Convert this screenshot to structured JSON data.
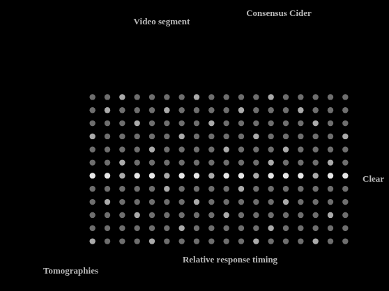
{
  "chart_data": {
    "type": "heatmap",
    "annotations": [
      "Video segment",
      "Consensus Cider",
      "Clear",
      "Relative response timing",
      "Tomographies"
    ],
    "tick_labels": false,
    "grid": false,
    "cells": [
      [
        1,
        1,
        2,
        1,
        1,
        1,
        1,
        2,
        1,
        1,
        1,
        1,
        2,
        1,
        1,
        1,
        1,
        1
      ],
      [
        1,
        2,
        1,
        1,
        1,
        2,
        1,
        1,
        1,
        1,
        2,
        1,
        1,
        1,
        2,
        1,
        1,
        1
      ],
      [
        1,
        1,
        1,
        2,
        1,
        1,
        1,
        1,
        2,
        1,
        1,
        1,
        1,
        1,
        1,
        2,
        1,
        1
      ],
      [
        2,
        1,
        1,
        1,
        1,
        1,
        2,
        1,
        1,
        1,
        1,
        2,
        1,
        1,
        1,
        1,
        1,
        2
      ],
      [
        1,
        1,
        1,
        1,
        2,
        1,
        1,
        1,
        1,
        2,
        1,
        1,
        1,
        2,
        1,
        1,
        1,
        1
      ],
      [
        1,
        1,
        2,
        1,
        1,
        1,
        1,
        1,
        1,
        1,
        1,
        1,
        2,
        1,
        1,
        1,
        2,
        1
      ],
      [
        3,
        3,
        2,
        3,
        3,
        2,
        3,
        3,
        2,
        3,
        3,
        2,
        3,
        3,
        3,
        2,
        3,
        3
      ],
      [
        1,
        1,
        1,
        1,
        1,
        2,
        1,
        1,
        1,
        1,
        2,
        1,
        1,
        1,
        1,
        1,
        1,
        1
      ],
      [
        1,
        2,
        1,
        1,
        1,
        1,
        1,
        2,
        1,
        1,
        1,
        1,
        1,
        2,
        1,
        1,
        1,
        1
      ],
      [
        1,
        1,
        1,
        2,
        1,
        1,
        1,
        1,
        1,
        2,
        1,
        1,
        1,
        1,
        1,
        1,
        2,
        1
      ],
      [
        1,
        1,
        1,
        1,
        1,
        1,
        2,
        1,
        1,
        1,
        1,
        1,
        2,
        1,
        1,
        1,
        1,
        1
      ],
      [
        2,
        1,
        1,
        1,
        2,
        1,
        1,
        1,
        1,
        1,
        1,
        2,
        1,
        1,
        1,
        2,
        1,
        1
      ]
    ]
  }
}
